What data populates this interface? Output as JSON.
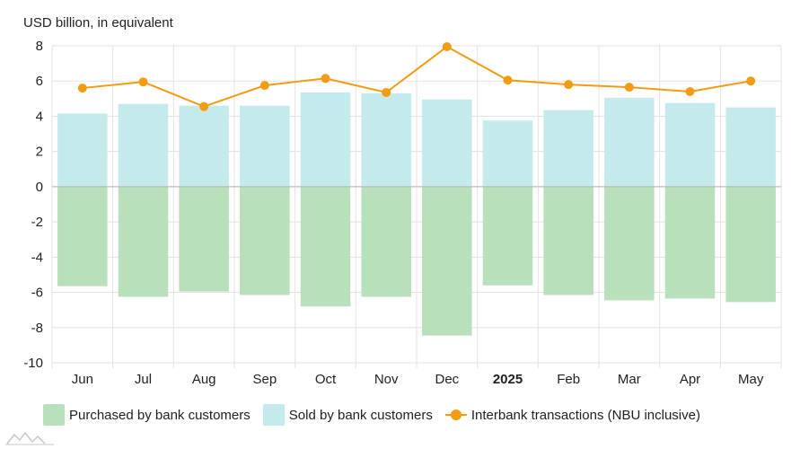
{
  "chart_data": {
    "type": "bar",
    "unit_label": "USD billion, in equivalent",
    "categories": [
      "Jun",
      "Jul",
      "Aug",
      "Sep",
      "Oct",
      "Nov",
      "Dec",
      "2025",
      "Feb",
      "Mar",
      "Apr",
      "May"
    ],
    "bold_categories": [
      "2025"
    ],
    "series": [
      {
        "name": "Purchased by bank customers",
        "type": "bar",
        "color": "#b7e0bb",
        "values": [
          -5.65,
          -6.25,
          -5.95,
          -6.15,
          -6.8,
          -6.25,
          -8.45,
          -5.6,
          -6.15,
          -6.45,
          -6.35,
          -6.55
        ]
      },
      {
        "name": "Sold by bank customers",
        "type": "bar",
        "color": "#c4eaeb",
        "values": [
          4.15,
          4.7,
          4.6,
          4.6,
          5.35,
          5.3,
          4.95,
          3.75,
          4.35,
          5.05,
          4.75,
          4.5
        ]
      },
      {
        "name": "Interbank transactions (NBU inclusive)",
        "type": "line",
        "color": "#f39c12",
        "values": [
          5.6,
          5.95,
          4.55,
          5.75,
          6.15,
          5.35,
          7.95,
          6.05,
          5.8,
          5.65,
          5.4,
          6.0
        ]
      }
    ],
    "ylim": [
      -10,
      8
    ],
    "yticks": [
      "8",
      "6",
      "4",
      "2",
      "0",
      "-2",
      "-4",
      "-6",
      "-8",
      "-10"
    ],
    "grid": true,
    "legend_position": "bottom"
  }
}
